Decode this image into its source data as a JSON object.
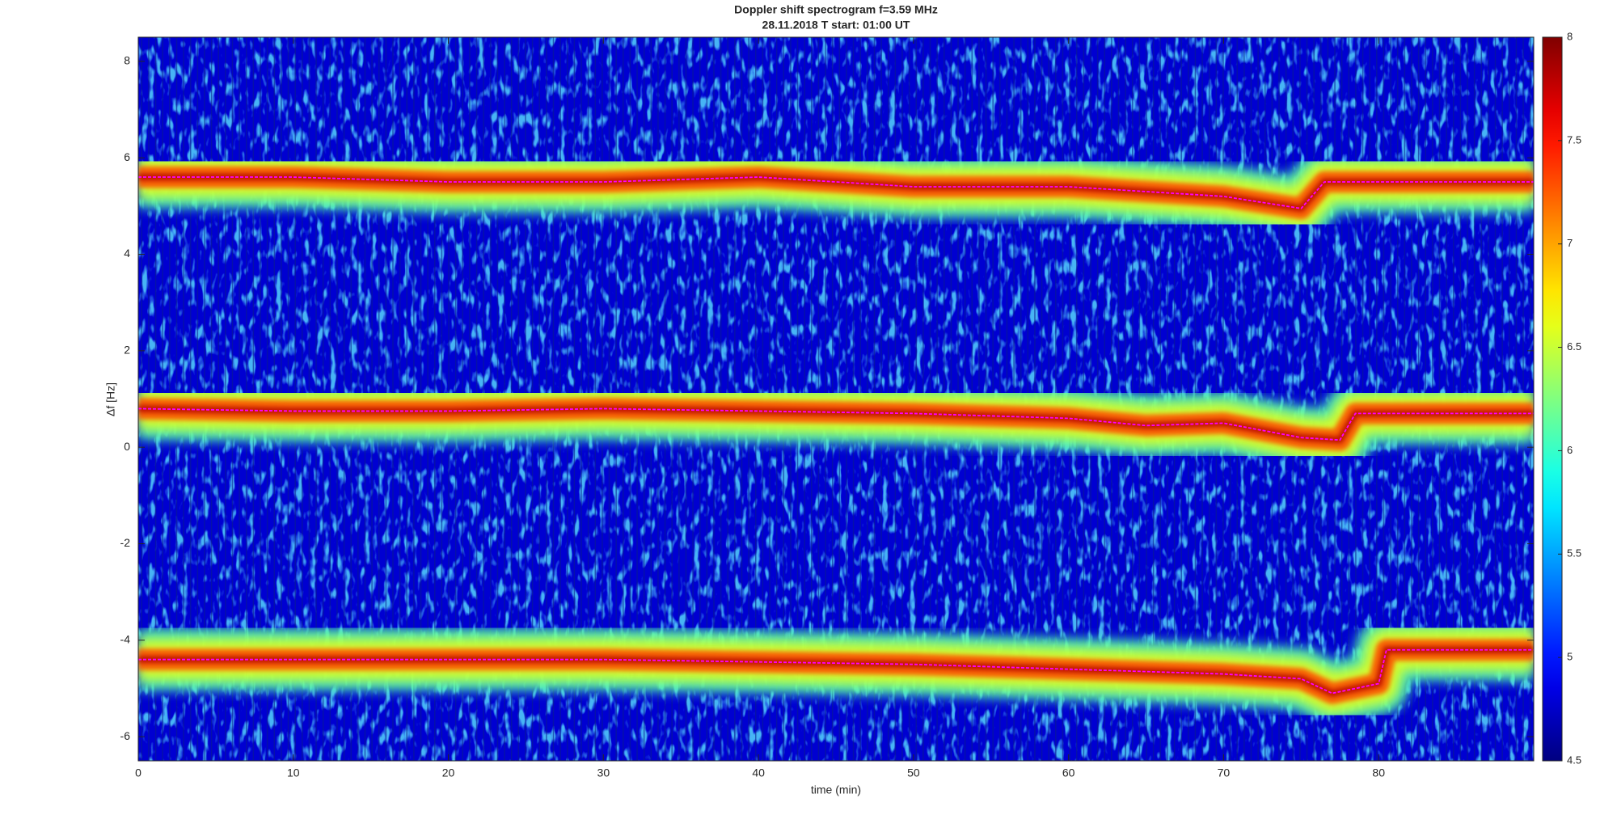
{
  "chart_data": {
    "type": "spectrogram",
    "title": "Doppler shift spectrogram f=3.59 MHz",
    "subtitle": "28.11.2018   T start: 01:00 UT",
    "xlabel": "time (min)",
    "ylabel": "Δf [Hz]",
    "xlim": [
      0,
      90
    ],
    "xticks": [
      0,
      10,
      20,
      30,
      40,
      50,
      60,
      70,
      80
    ],
    "ylim": [
      -6.5,
      8.5
    ],
    "yticks": [
      -6,
      -4,
      -2,
      0,
      2,
      4,
      6,
      8
    ],
    "colormap": "jet",
    "clim": [
      4.5,
      8
    ],
    "cticks": [
      4.5,
      5,
      5.5,
      6,
      6.5,
      7,
      7.5,
      8
    ],
    "series": [
      {
        "color": "#ff00ff",
        "x": [
          0,
          10,
          20,
          30,
          40,
          50,
          60,
          70,
          75,
          76.5,
          90
        ],
        "values": [
          5.6,
          5.6,
          5.5,
          5.5,
          5.6,
          5.4,
          5.4,
          5.2,
          4.95,
          5.5,
          5.5
        ]
      },
      {
        "color": "#ff00ff",
        "x": [
          0,
          10,
          20,
          30,
          40,
          50,
          60,
          65,
          70,
          75,
          77.5,
          78.5,
          90
        ],
        "values": [
          0.8,
          0.75,
          0.75,
          0.8,
          0.75,
          0.7,
          0.6,
          0.45,
          0.5,
          0.2,
          0.15,
          0.7,
          0.7
        ]
      },
      {
        "color": "#ff00ff",
        "x": [
          0,
          10,
          20,
          30,
          40,
          50,
          60,
          70,
          75,
          77,
          80,
          80.5,
          90
        ],
        "values": [
          -4.4,
          -4.4,
          -4.4,
          -4.4,
          -4.45,
          -4.5,
          -4.6,
          -4.7,
          -4.8,
          -5.1,
          -4.9,
          -4.2,
          -4.2
        ]
      }
    ]
  }
}
